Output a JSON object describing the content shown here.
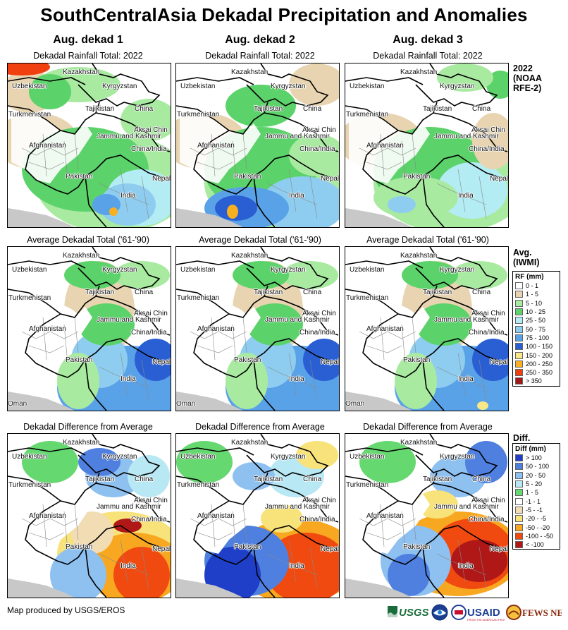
{
  "title": "SouthCentralAsia Dekadal Precipitation and Anomalies",
  "columns": [
    {
      "heading": "Aug. dekad 1"
    },
    {
      "heading": "Aug. dekad 2"
    },
    {
      "heading": "Aug. dekad 3"
    }
  ],
  "rows": [
    {
      "panel_title": "Dekadal Rainfall Total: 2022",
      "side_label": "2022\n(NOAA\nRFE-2)",
      "palette": "rain2022"
    },
    {
      "panel_title": "Average Dekadal Total ('61-'90)",
      "side_label": "Avg.\n(IWMI)",
      "palette": "avg"
    },
    {
      "panel_title": "Dekadal Difference from Average",
      "side_label": "Diff.",
      "palette": "diff"
    }
  ],
  "map_labels": {
    "kazakhstan": "Kazakhstan",
    "uzbekistan": "Uzbekistan",
    "kyrgyzstan": "Kyrgyzstan",
    "turkmenistan": "Turkmenistan",
    "tajikistan": "Tajikistan",
    "china": "China",
    "aksai_chin": "Aksai Chin",
    "jammu_kashmir": "Jammu and Kashmir",
    "china_india": "China/India",
    "afghanistan": "Afghanistan",
    "pakistan": "Pakistan",
    "nepal": "Nepal",
    "india": "India",
    "oman": "Oman"
  },
  "rf_legend": {
    "title": "RF (mm)",
    "items": [
      {
        "label": "0 - 1",
        "color": "#ffffff"
      },
      {
        "label": "1 - 5",
        "color": "#e8d4b0"
      },
      {
        "label": "5 - 10",
        "color": "#a8eaa0"
      },
      {
        "label": "10 - 25",
        "color": "#5cd26a"
      },
      {
        "label": "25 - 50",
        "color": "#b4ecf4"
      },
      {
        "label": "50 - 75",
        "color": "#8ecdf0"
      },
      {
        "label": "75 - 100",
        "color": "#5aa2e8"
      },
      {
        "label": "100 - 150",
        "color": "#2a5fd4"
      },
      {
        "label": "150 - 200",
        "color": "#f8e888"
      },
      {
        "label": "200 - 250",
        "color": "#f8b020"
      },
      {
        "label": "250 - 350",
        "color": "#f04010"
      },
      {
        "label": "> 350",
        "color": "#a01818"
      }
    ]
  },
  "diff_legend": {
    "title": "Diff (mm)",
    "items": [
      {
        "label": "> 100",
        "color": "#1f3fc8"
      },
      {
        "label": "50 - 100",
        "color": "#4f80e0"
      },
      {
        "label": "20 - 50",
        "color": "#8ec0f0"
      },
      {
        "label": "5 - 20",
        "color": "#b8e8f4"
      },
      {
        "label": "1 - 5",
        "color": "#66d870"
      },
      {
        "label": "-1 - 1",
        "color": "#ffffff"
      },
      {
        "label": "-5 - -1",
        "color": "#f2dcb4"
      },
      {
        "label": "-20 - -5",
        "color": "#f8e27a"
      },
      {
        "label": "-50 - -20",
        "color": "#f8a820"
      },
      {
        "label": "-100 - -50",
        "color": "#f04a10"
      },
      {
        "label": "< -100",
        "color": "#b01818"
      }
    ]
  },
  "footer": {
    "credit": "Map produced by USGS/EROS",
    "logos": [
      "USGS",
      "NOAA",
      "USAID",
      "FEWS NET"
    ]
  }
}
